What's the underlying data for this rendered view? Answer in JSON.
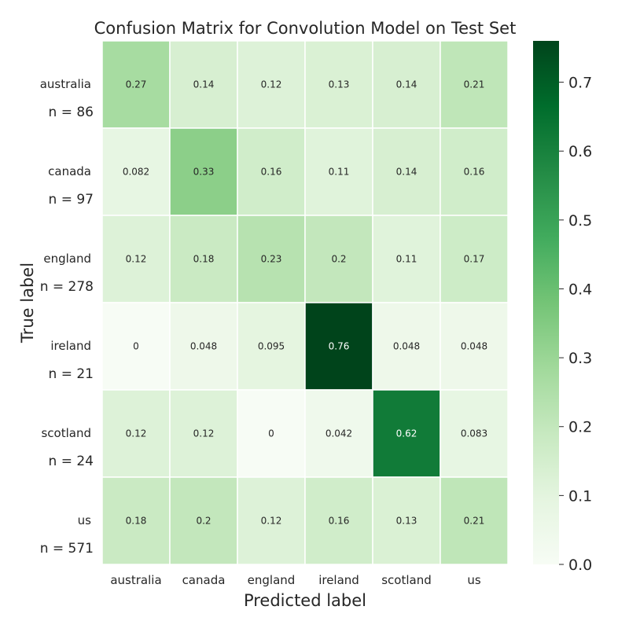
{
  "chart_data": {
    "type": "heatmap",
    "title": "Confusion Matrix for Convolution Model on Test Set",
    "xlabel": "Predicted label",
    "ylabel": "True label",
    "x_categories": [
      "australia",
      "canada",
      "england",
      "ireland",
      "scotland",
      "us"
    ],
    "y_categories": [
      "australia",
      "canada",
      "england",
      "ireland",
      "scotland",
      "us"
    ],
    "row_counts": [
      "n = 86",
      "n = 97",
      "n = 278",
      "n = 21",
      "n = 24",
      "n = 571"
    ],
    "values": [
      [
        0.27,
        0.14,
        0.12,
        0.13,
        0.14,
        0.21
      ],
      [
        0.082,
        0.33,
        0.16,
        0.11,
        0.14,
        0.16
      ],
      [
        0.12,
        0.18,
        0.23,
        0.2,
        0.11,
        0.17
      ],
      [
        0,
        0.048,
        0.095,
        0.76,
        0.048,
        0.048
      ],
      [
        0.12,
        0.12,
        0,
        0.042,
        0.62,
        0.083
      ],
      [
        0.18,
        0.2,
        0.12,
        0.16,
        0.13,
        0.21
      ]
    ],
    "colorbar": {
      "vmin": 0.0,
      "vmax": 0.76,
      "ticks": [
        "0.0",
        "0.1",
        "0.2",
        "0.3",
        "0.4",
        "0.5",
        "0.6",
        "0.7"
      ],
      "colormap": "Greens"
    },
    "grid": false,
    "legend": "none"
  }
}
